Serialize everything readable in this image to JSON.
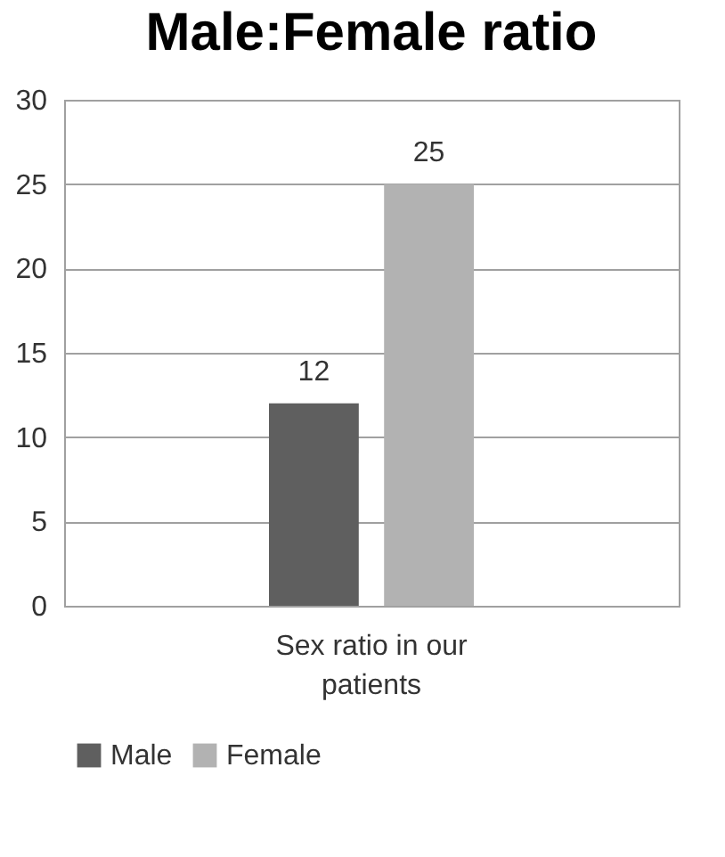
{
  "chart_data": {
    "type": "bar",
    "title": "Male:Female ratio",
    "categories": [
      "Sex ratio in our patients"
    ],
    "series": [
      {
        "name": "Male",
        "color": "#5f5f5f",
        "values": [
          12
        ]
      },
      {
        "name": "Female",
        "color": "#b2b2b2",
        "values": [
          25
        ]
      }
    ],
    "ylim": [
      0,
      30
    ],
    "yticks": [
      0,
      5,
      10,
      15,
      20,
      25,
      30
    ],
    "grid": "y",
    "legend": "bottom",
    "data_labels": true
  }
}
